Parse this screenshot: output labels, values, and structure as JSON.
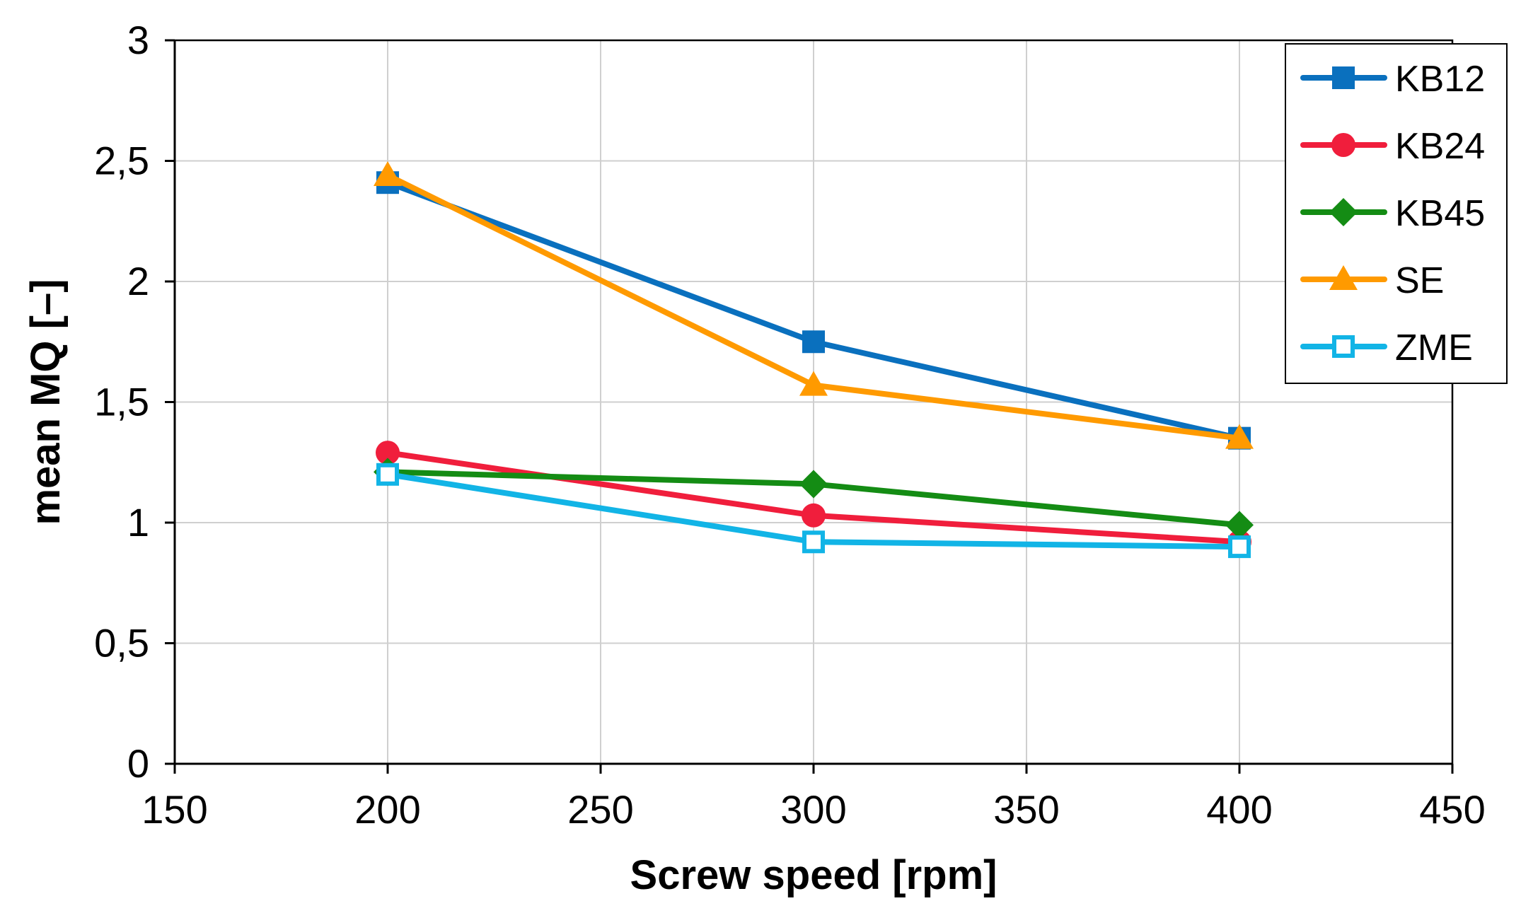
{
  "chart_data": {
    "type": "line",
    "title": "",
    "xlabel": "Screw speed [rpm]",
    "ylabel": "mean MQ [–]",
    "xlim": [
      150,
      450
    ],
    "ylim": [
      0,
      3
    ],
    "xticks": [
      150,
      200,
      250,
      300,
      350,
      400,
      450
    ],
    "xtick_labels": [
      "150",
      "200",
      "250",
      "300",
      "350",
      "400",
      "450"
    ],
    "yticks": [
      0,
      0.5,
      1,
      1.5,
      2,
      2.5,
      3
    ],
    "ytick_labels": [
      "0",
      "0,5",
      "1",
      "1,5",
      "2",
      "2,5",
      "3"
    ],
    "grid": true,
    "legend_position": "top-right",
    "x": [
      200,
      300,
      400
    ],
    "series": [
      {
        "name": "KB12",
        "values": [
          2.41,
          1.75,
          1.35
        ],
        "color": "#0a70be",
        "marker": "square"
      },
      {
        "name": "KB24",
        "values": [
          1.29,
          1.03,
          0.92
        ],
        "color": "#f01e3c",
        "marker": "circle"
      },
      {
        "name": "KB45",
        "values": [
          1.21,
          1.16,
          0.99
        ],
        "color": "#148c14",
        "marker": "diamond"
      },
      {
        "name": "SE",
        "values": [
          2.44,
          1.57,
          1.35
        ],
        "color": "#ff9a00",
        "marker": "triangle"
      },
      {
        "name": "ZME",
        "values": [
          1.2,
          0.92,
          0.9
        ],
        "color": "#12b4e6",
        "marker": "square-open"
      }
    ]
  }
}
